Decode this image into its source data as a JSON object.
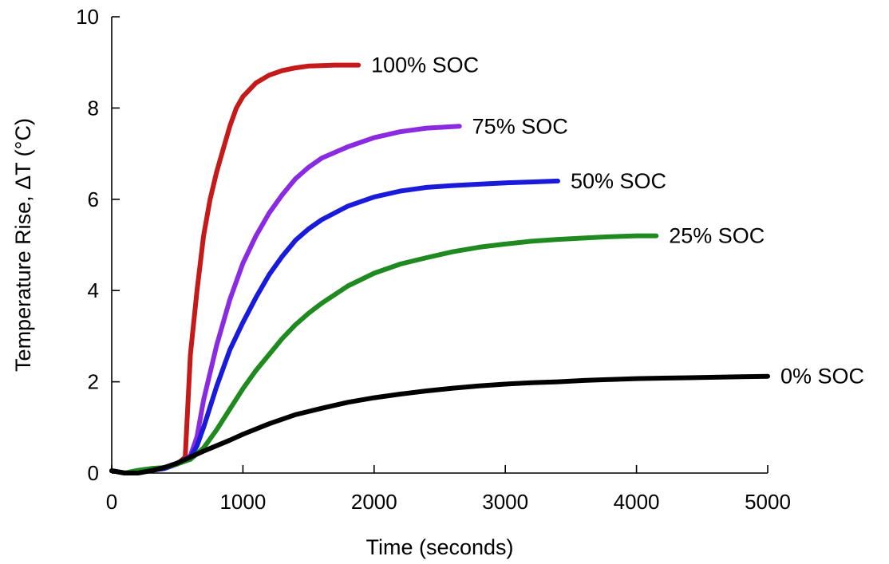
{
  "chart_data": {
    "type": "line",
    "title": "",
    "xlabel": "Time (seconds)",
    "ylabel": "Temperature Rise, ΔT (°C)",
    "xlim": [
      0,
      5000
    ],
    "ylim": [
      0,
      10
    ],
    "xticks": [
      0,
      1000,
      2000,
      3000,
      4000,
      5000
    ],
    "yticks": [
      0,
      2,
      4,
      6,
      8,
      10
    ],
    "xtick_labels": [
      "0",
      "1000",
      "2000",
      "3000",
      "4000",
      "5000"
    ],
    "ytick_labels": [
      "0",
      "2",
      "4",
      "6",
      "8",
      "10"
    ],
    "grid": false,
    "legend": "direct labels at line ends",
    "series": [
      {
        "name": "100% SOC",
        "color": "#c41a1a",
        "x": [
          0,
          100,
          200,
          300,
          400,
          500,
          560,
          600,
          650,
          700,
          750,
          800,
          850,
          900,
          950,
          1000,
          1100,
          1200,
          1300,
          1400,
          1500,
          1600,
          1700,
          1880
        ],
        "y": [
          0.05,
          0.0,
          0.02,
          0.06,
          0.1,
          0.2,
          0.35,
          2.6,
          4.0,
          5.2,
          6.0,
          6.6,
          7.1,
          7.6,
          8.0,
          8.25,
          8.55,
          8.72,
          8.82,
          8.88,
          8.92,
          8.93,
          8.94,
          8.94
        ]
      },
      {
        "name": "75% SOC",
        "color": "#8a2be2",
        "x": [
          0,
          100,
          200,
          300,
          400,
          500,
          600,
          650,
          700,
          800,
          900,
          1000,
          1100,
          1200,
          1300,
          1400,
          1500,
          1600,
          1800,
          2000,
          2200,
          2400,
          2650
        ],
        "y": [
          0.05,
          0.0,
          0.02,
          0.06,
          0.1,
          0.2,
          0.38,
          0.8,
          1.6,
          2.8,
          3.8,
          4.6,
          5.2,
          5.7,
          6.1,
          6.45,
          6.7,
          6.9,
          7.15,
          7.35,
          7.48,
          7.56,
          7.6
        ]
      },
      {
        "name": "50% SOC",
        "color": "#1a1adb",
        "x": [
          0,
          100,
          200,
          300,
          400,
          500,
          600,
          650,
          700,
          800,
          900,
          1000,
          1100,
          1200,
          1300,
          1400,
          1500,
          1600,
          1800,
          2000,
          2200,
          2400,
          2600,
          2800,
          3000,
          3200,
          3400
        ],
        "y": [
          0.05,
          0.0,
          0.02,
          0.06,
          0.1,
          0.2,
          0.35,
          0.6,
          1.0,
          1.9,
          2.7,
          3.3,
          3.85,
          4.35,
          4.75,
          5.1,
          5.35,
          5.55,
          5.85,
          6.05,
          6.18,
          6.26,
          6.3,
          6.33,
          6.36,
          6.38,
          6.4
        ]
      },
      {
        "name": "25% SOC",
        "color": "#1f8a1f",
        "x": [
          0,
          100,
          200,
          300,
          400,
          500,
          600,
          700,
          800,
          900,
          1000,
          1100,
          1200,
          1300,
          1400,
          1500,
          1600,
          1800,
          2000,
          2200,
          2400,
          2600,
          2800,
          3000,
          3200,
          3400,
          3600,
          3800,
          4000,
          4150
        ],
        "y": [
          0.05,
          0.0,
          0.06,
          0.1,
          0.12,
          0.2,
          0.3,
          0.55,
          0.95,
          1.4,
          1.85,
          2.25,
          2.6,
          2.95,
          3.25,
          3.5,
          3.72,
          4.1,
          4.38,
          4.58,
          4.72,
          4.85,
          4.95,
          5.02,
          5.08,
          5.12,
          5.15,
          5.18,
          5.2,
          5.2
        ]
      },
      {
        "name": "0% SOC",
        "color": "#000000",
        "x": [
          0,
          100,
          200,
          300,
          400,
          500,
          600,
          700,
          800,
          900,
          1000,
          1200,
          1400,
          1600,
          1800,
          2000,
          2200,
          2400,
          2600,
          2800,
          3000,
          3200,
          3400,
          3600,
          3800,
          4000,
          4200,
          4400,
          4600,
          4800,
          5000
        ],
        "y": [
          0.05,
          0.0,
          0.0,
          0.05,
          0.12,
          0.22,
          0.35,
          0.48,
          0.6,
          0.72,
          0.85,
          1.08,
          1.28,
          1.42,
          1.55,
          1.65,
          1.73,
          1.8,
          1.86,
          1.91,
          1.95,
          1.98,
          2.0,
          2.03,
          2.05,
          2.07,
          2.08,
          2.09,
          2.1,
          2.11,
          2.12
        ]
      }
    ]
  }
}
